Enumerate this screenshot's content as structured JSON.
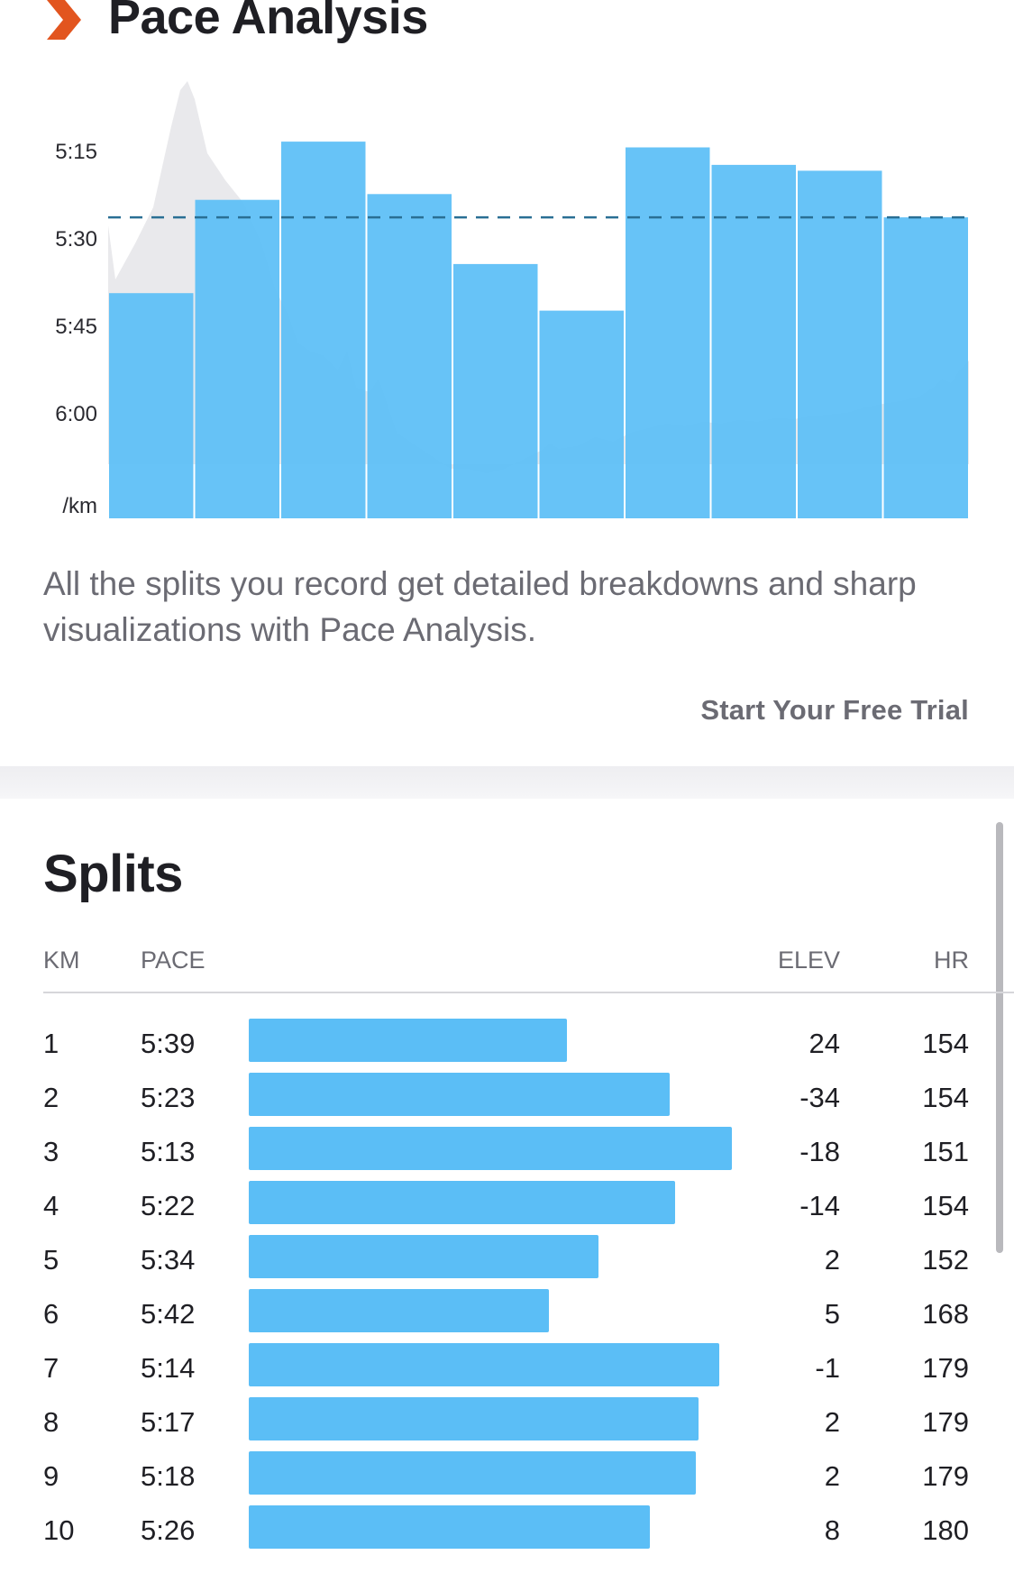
{
  "header": {
    "title": "Pace Analysis",
    "icon": "chevron-right-icon",
    "accent_color": "#e2551f"
  },
  "chart_data": {
    "type": "bar",
    "categories": [
      "1",
      "2",
      "3",
      "4",
      "5",
      "6",
      "7",
      "8",
      "9",
      "10"
    ],
    "values": [
      "5:39",
      "5:23",
      "5:13",
      "5:22",
      "5:34",
      "5:42",
      "5:14",
      "5:17",
      "5:18",
      "5:26"
    ],
    "values_seconds": [
      339,
      323,
      313,
      322,
      334,
      342,
      314,
      317,
      318,
      326
    ],
    "y_tick_labels": [
      "5:15",
      "5:30",
      "5:45",
      "6:00"
    ],
    "y_ticks_seconds": [
      315,
      330,
      345,
      360
    ],
    "y_unit_label": "/km",
    "average_line_seconds": 326,
    "y_axis_inverted": true,
    "bar_color": "#5bbef6",
    "average_line_color": "#2a6f94",
    "elevation_area_color": "#e9e9ec"
  },
  "description": "All the splits you record get detailed breakdowns and sharp visualizations with Pace Analysis.",
  "cta_label": "Start Your Free Trial",
  "splits": {
    "title": "Splits",
    "headers": {
      "km": "KM",
      "pace": "PACE",
      "elev": "ELEV",
      "hr": "HR"
    },
    "rows": [
      {
        "km": "1",
        "pace": "5:39",
        "elev": "24",
        "hr": "154",
        "pace_fraction": 0.62
      },
      {
        "km": "2",
        "pace": "5:23",
        "elev": "-34",
        "hr": "154",
        "pace_fraction": 0.82
      },
      {
        "km": "3",
        "pace": "5:13",
        "elev": "-18",
        "hr": "151",
        "pace_fraction": 0.94
      },
      {
        "km": "4",
        "pace": "5:22",
        "elev": "-14",
        "hr": "154",
        "pace_fraction": 0.83
      },
      {
        "km": "5",
        "pace": "5:34",
        "elev": "2",
        "hr": "152",
        "pace_fraction": 0.68
      },
      {
        "km": "6",
        "pace": "5:42",
        "elev": "5",
        "hr": "168",
        "pace_fraction": 0.585
      },
      {
        "km": "7",
        "pace": "5:14",
        "elev": "-1",
        "hr": "179",
        "pace_fraction": 0.915
      },
      {
        "km": "8",
        "pace": "5:17",
        "elev": "2",
        "hr": "179",
        "pace_fraction": 0.875
      },
      {
        "km": "9",
        "pace": "5:18",
        "elev": "2",
        "hr": "179",
        "pace_fraction": 0.87
      },
      {
        "km": "10",
        "pace": "5:26",
        "elev": "8",
        "hr": "180",
        "pace_fraction": 0.78
      }
    ]
  }
}
